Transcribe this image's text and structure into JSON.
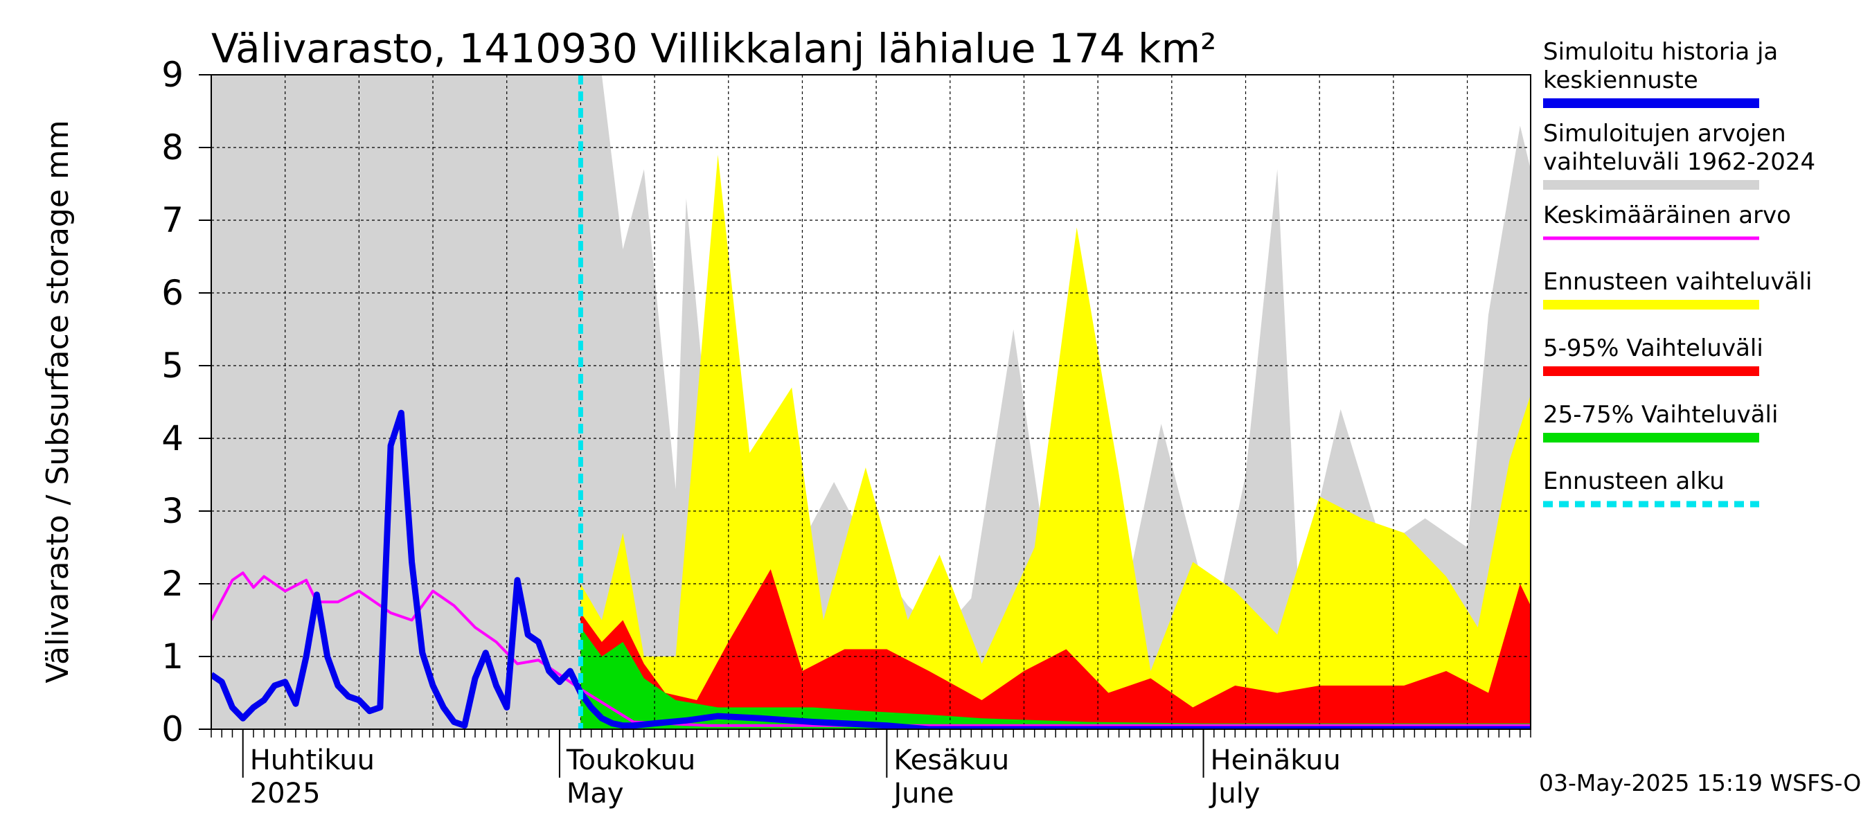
{
  "chart_data": {
    "type": "area",
    "title": "Välivarasto, 1410930 Villikkalanj lähialue 174 km²",
    "ylabel": "Välivarasto / Subsurface storage  mm",
    "ylim": [
      0,
      9
    ],
    "yticks": [
      0,
      1,
      2,
      3,
      4,
      5,
      6,
      7,
      8,
      9
    ],
    "grid": true,
    "legend_position": "right",
    "x_start": "2025-03-29",
    "x_end": "2025-08-01",
    "forecast_start": "2025-05-03",
    "months": [
      {
        "fi": "Huhtikuu",
        "en": "2025",
        "start": "2025-04-01"
      },
      {
        "fi": "Toukokuu",
        "en": "May",
        "start": "2025-05-01"
      },
      {
        "fi": "Kesäkuu",
        "en": "June",
        "start": "2025-06-01"
      },
      {
        "fi": "Heinäkuu",
        "en": "July",
        "start": "2025-07-01"
      }
    ],
    "series": [
      {
        "name": "Simuloitujen arvojen vaihteluväli 1962-2024",
        "color": "#d3d3d3",
        "kind": "band",
        "x": [
          "2025-03-29",
          "2025-05-03",
          "2025-05-05",
          "2025-05-07",
          "2025-05-09",
          "2025-05-12",
          "2025-05-13",
          "2025-05-15",
          "2025-05-19",
          "2025-05-23",
          "2025-05-27",
          "2025-05-31",
          "2025-06-03",
          "2025-06-06",
          "2025-06-09",
          "2025-06-13",
          "2025-06-16",
          "2025-06-20",
          "2025-06-24",
          "2025-06-27",
          "2025-07-02",
          "2025-07-05",
          "2025-07-08",
          "2025-07-10",
          "2025-07-14",
          "2025-07-18",
          "2025-07-22",
          "2025-07-26",
          "2025-07-28",
          "2025-07-31",
          "2025-08-01"
        ],
        "upper": [
          9.0,
          9.0,
          9.0,
          6.6,
          7.7,
          3.3,
          7.3,
          4.2,
          1.9,
          2.3,
          3.4,
          2.3,
          1.7,
          1.3,
          1.8,
          5.5,
          2.5,
          2.6,
          2.1,
          4.2,
          1.4,
          3.5,
          7.7,
          1.9,
          4.4,
          2.5,
          2.9,
          2.5,
          5.7,
          8.3,
          7.7
        ],
        "lower": [
          0,
          0,
          0.1,
          0.05,
          0.03,
          0.02,
          0.02,
          0.02,
          0.01,
          0.01,
          0.01,
          0.01,
          0,
          0,
          0,
          0,
          0,
          0,
          0,
          0,
          0,
          0,
          0,
          0,
          0,
          0,
          0,
          0,
          0,
          0,
          0
        ]
      },
      {
        "name": "Ennusteen vaihteluväli",
        "color": "#ffff00",
        "kind": "band",
        "x": [
          "2025-05-03",
          "2025-05-05",
          "2025-05-07",
          "2025-05-09",
          "2025-05-12",
          "2025-05-16",
          "2025-05-19",
          "2025-05-23",
          "2025-05-26",
          "2025-05-30",
          "2025-06-03",
          "2025-06-06",
          "2025-06-10",
          "2025-06-15",
          "2025-06-19",
          "2025-06-23",
          "2025-06-26",
          "2025-06-30",
          "2025-07-04",
          "2025-07-08",
          "2025-07-12",
          "2025-07-16",
          "2025-07-20",
          "2025-07-24",
          "2025-07-27",
          "2025-07-30",
          "2025-08-01"
        ],
        "upper": [
          2.0,
          1.5,
          2.7,
          1.0,
          1.0,
          7.9,
          3.8,
          4.7,
          1.5,
          3.6,
          1.5,
          2.4,
          0.9,
          2.5,
          6.9,
          3.5,
          0.8,
          2.3,
          1.9,
          1.3,
          3.2,
          2.9,
          2.7,
          2.1,
          1.4,
          3.7,
          4.6
        ],
        "lower": [
          0,
          0.02,
          0.02,
          0.01,
          0.01,
          0.01,
          0,
          0,
          0,
          0,
          0,
          0,
          0,
          0,
          0,
          0,
          0,
          0,
          0,
          0,
          0,
          0,
          0,
          0,
          0,
          0,
          0
        ]
      },
      {
        "name": "5-95% Vaihteluväli",
        "color": "#ff0000",
        "kind": "band",
        "x": [
          "2025-05-03",
          "2025-05-05",
          "2025-05-07",
          "2025-05-09",
          "2025-05-11",
          "2025-05-14",
          "2025-05-17",
          "2025-05-21",
          "2025-05-24",
          "2025-05-28",
          "2025-06-01",
          "2025-06-05",
          "2025-06-10",
          "2025-06-14",
          "2025-06-18",
          "2025-06-22",
          "2025-06-26",
          "2025-06-30",
          "2025-07-04",
          "2025-07-08",
          "2025-07-12",
          "2025-07-16",
          "2025-07-20",
          "2025-07-24",
          "2025-07-28",
          "2025-07-31",
          "2025-08-01"
        ],
        "upper": [
          1.6,
          1.2,
          1.5,
          0.9,
          0.5,
          0.4,
          1.2,
          2.2,
          0.8,
          1.1,
          1.1,
          0.8,
          0.4,
          0.8,
          1.1,
          0.5,
          0.7,
          0.3,
          0.6,
          0.5,
          0.6,
          0.6,
          0.6,
          0.8,
          0.5,
          2.0,
          1.7
        ],
        "lower": [
          0,
          0.01,
          0.01,
          0,
          0,
          0,
          0,
          0,
          0,
          0,
          0,
          0,
          0,
          0,
          0,
          0,
          0,
          0,
          0,
          0,
          0,
          0,
          0,
          0,
          0,
          0,
          0
        ]
      },
      {
        "name": "25-75% Vaihteluväli",
        "color": "#00dd00",
        "kind": "band",
        "x": [
          "2025-05-03",
          "2025-05-05",
          "2025-05-07",
          "2025-05-09",
          "2025-05-12",
          "2025-05-16",
          "2025-05-20",
          "2025-05-25",
          "2025-05-30",
          "2025-06-05",
          "2025-06-10",
          "2025-06-20",
          "2025-07-01",
          "2025-07-15",
          "2025-08-01"
        ],
        "upper": [
          1.4,
          1.0,
          1.2,
          0.7,
          0.4,
          0.3,
          0.3,
          0.3,
          0.25,
          0.2,
          0.15,
          0.1,
          0.08,
          0.08,
          0.08
        ],
        "lower": [
          0,
          0.01,
          0.01,
          0,
          0,
          0,
          0,
          0,
          0,
          0,
          0,
          0,
          0,
          0,
          0
        ]
      },
      {
        "name": "Keskimääräinen arvo",
        "color": "#ff00ff",
        "kind": "line",
        "x": [
          "2025-03-29",
          "2025-03-31",
          "2025-04-01",
          "2025-04-02",
          "2025-04-03",
          "2025-04-05",
          "2025-04-07",
          "2025-04-08",
          "2025-04-10",
          "2025-04-12",
          "2025-04-15",
          "2025-04-17",
          "2025-04-19",
          "2025-04-21",
          "2025-04-23",
          "2025-04-25",
          "2025-04-27",
          "2025-04-29",
          "2025-05-03",
          "2025-05-08",
          "2025-05-15",
          "2025-06-01",
          "2025-06-15",
          "2025-07-01",
          "2025-07-15",
          "2025-08-01"
        ],
        "y": [
          1.5,
          2.05,
          2.15,
          1.95,
          2.1,
          1.9,
          2.05,
          1.75,
          1.75,
          1.9,
          1.6,
          1.5,
          1.9,
          1.7,
          1.4,
          1.2,
          0.9,
          0.95,
          0.55,
          0.1,
          0.05,
          0.05,
          0.05,
          0.05,
          0.05,
          0.05
        ]
      },
      {
        "name": "Simuloitu historia ja keskiennuste",
        "color": "#0000ee",
        "kind": "line",
        "x": [
          "2025-03-29",
          "2025-03-30",
          "2025-03-31",
          "2025-04-01",
          "2025-04-02",
          "2025-04-03",
          "2025-04-04",
          "2025-04-05",
          "2025-04-06",
          "2025-04-07",
          "2025-04-08",
          "2025-04-09",
          "2025-04-10",
          "2025-04-11",
          "2025-04-12",
          "2025-04-13",
          "2025-04-14",
          "2025-04-15",
          "2025-04-16",
          "2025-04-17",
          "2025-04-18",
          "2025-04-19",
          "2025-04-20",
          "2025-04-21",
          "2025-04-22",
          "2025-04-23",
          "2025-04-24",
          "2025-04-25",
          "2025-04-26",
          "2025-04-27",
          "2025-04-28",
          "2025-04-29",
          "2025-04-30",
          "2025-05-01",
          "2025-05-02",
          "2025-05-03",
          "2025-05-04",
          "2025-05-05",
          "2025-05-06",
          "2025-05-07",
          "2025-05-08",
          "2025-05-10",
          "2025-05-13",
          "2025-05-16",
          "2025-05-20",
          "2025-05-25",
          "2025-06-01",
          "2025-06-05",
          "2025-06-10",
          "2025-06-20",
          "2025-07-01",
          "2025-07-15",
          "2025-08-01"
        ],
        "y": [
          0.75,
          0.65,
          0.3,
          0.15,
          0.3,
          0.4,
          0.6,
          0.65,
          0.35,
          1.0,
          1.85,
          1.0,
          0.6,
          0.45,
          0.4,
          0.25,
          0.3,
          3.9,
          4.35,
          2.3,
          1.05,
          0.6,
          0.3,
          0.1,
          0.05,
          0.7,
          1.05,
          0.6,
          0.3,
          2.05,
          1.3,
          1.2,
          0.8,
          0.65,
          0.8,
          0.5,
          0.3,
          0.15,
          0.08,
          0.05,
          0.05,
          0.08,
          0.12,
          0.18,
          0.15,
          0.1,
          0.05,
          0.0,
          0.0,
          0.0,
          0.0,
          0.0,
          0.0
        ]
      }
    ],
    "legend": [
      {
        "lines": [
          "Simuloitu historia ja",
          "keskiennuste"
        ],
        "color": "#0000ee",
        "style": "solid"
      },
      {
        "lines": [
          "Simuloitujen arvojen",
          "vaihteluväli 1962-2024"
        ],
        "color": "#d3d3d3",
        "style": "solid"
      },
      {
        "lines": [
          "Keskimääräinen arvo"
        ],
        "color": "#ff00ff",
        "style": "thin"
      },
      {
        "lines": [
          "Ennusteen vaihteluväli"
        ],
        "color": "#ffff00",
        "style": "solid"
      },
      {
        "lines": [
          "5-95% Vaihteluväli"
        ],
        "color": "#ff0000",
        "style": "solid"
      },
      {
        "lines": [
          "25-75% Vaihteluväli"
        ],
        "color": "#00dd00",
        "style": "solid"
      },
      {
        "lines": [
          "Ennusteen alku"
        ],
        "color": "#00e5ee",
        "style": "dashed"
      }
    ],
    "footer": "03-May-2025 15:19 WSFS-O"
  }
}
